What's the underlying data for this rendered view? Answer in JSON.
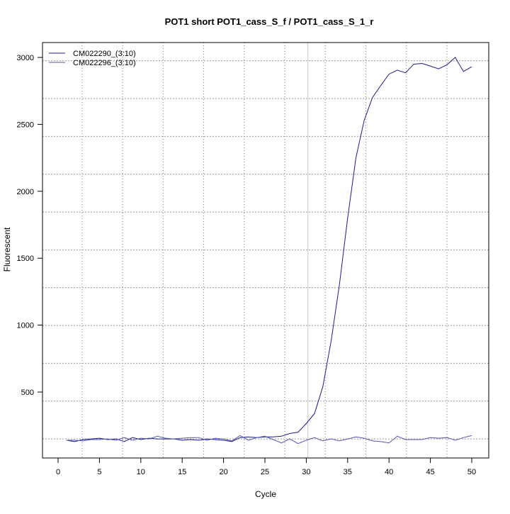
{
  "chart_data": {
    "type": "line",
    "title": "POT1 short POT1_cass_S_f / POT1_cass_S_1_r",
    "xlabel": "Cycle",
    "ylabel": "Fluorescent",
    "xlim": [
      -2,
      52
    ],
    "ylim": [
      13,
      3111
    ],
    "xticks": [
      0,
      5,
      10,
      15,
      20,
      25,
      30,
      35,
      40,
      45,
      50
    ],
    "yticks": [
      500,
      1000,
      1500,
      2000,
      2500,
      3000
    ],
    "grid": true,
    "legend_position": "top-left",
    "threshold_cycle": 30.2,
    "threshold_color": "#c8c8c8",
    "x": [
      1,
      2,
      3,
      4,
      5,
      6,
      7,
      8,
      9,
      10,
      11,
      12,
      13,
      14,
      15,
      16,
      17,
      18,
      19,
      20,
      21,
      22,
      23,
      24,
      25,
      26,
      27,
      28,
      29,
      30,
      31,
      32,
      33,
      34,
      35,
      36,
      37,
      38,
      39,
      40,
      41,
      42,
      43,
      44,
      45,
      46,
      47,
      48,
      49,
      50
    ],
    "series": [
      {
        "name": "CM022290_(3:10)",
        "color": "#1c1c8e",
        "values": [
          140,
          130,
          145,
          150,
          155,
          145,
          150,
          130,
          160,
          145,
          155,
          150,
          150,
          150,
          140,
          145,
          140,
          150,
          145,
          140,
          130,
          160,
          165,
          160,
          165,
          165,
          170,
          190,
          200,
          265,
          340,
          540,
          880,
          1300,
          1800,
          2250,
          2530,
          2700,
          2790,
          2875,
          2905,
          2885,
          2950,
          2955,
          2935,
          2915,
          2945,
          3000,
          2895,
          2930
        ]
      },
      {
        "name": "CM022296_(3:10)",
        "color": "#5656b0",
        "values": [
          140,
          140,
          135,
          145,
          145,
          150,
          140,
          160,
          140,
          155,
          150,
          170,
          155,
          150,
          155,
          160,
          160,
          140,
          155,
          150,
          135,
          175,
          140,
          160,
          170,
          145,
          120,
          150,
          115,
          140,
          160,
          135,
          150,
          135,
          150,
          165,
          155,
          135,
          130,
          120,
          170,
          145,
          145,
          145,
          160,
          155,
          160,
          140,
          160,
          175
        ]
      }
    ]
  }
}
